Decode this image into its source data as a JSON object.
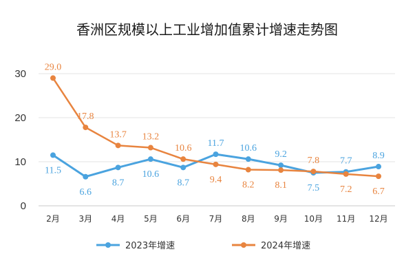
{
  "chart_data": {
    "type": "line",
    "title": "香洲区规模以上工业增加值累计增速走势图",
    "categories": [
      "2月",
      "3月",
      "4月",
      "5月",
      "6月",
      "7月",
      "8月",
      "9月",
      "10月",
      "11月",
      "12月"
    ],
    "series": [
      {
        "name": "2023年增速",
        "color": "#4aa3df",
        "values": [
          11.5,
          6.6,
          8.7,
          10.6,
          8.7,
          11.7,
          10.6,
          9.2,
          7.5,
          7.7,
          8.9
        ],
        "labels": [
          "11.5",
          "6.6",
          "8.7",
          "10.6",
          "8.7",
          "11.7",
          "10.6",
          "9.2",
          "7.5",
          "7.7",
          "8.9"
        ]
      },
      {
        "name": "2024年增速",
        "color": "#e8843f",
        "values": [
          29.0,
          17.8,
          13.7,
          13.2,
          10.6,
          9.4,
          8.2,
          8.1,
          7.8,
          7.2,
          6.7
        ],
        "labels": [
          "29.0",
          "17.8",
          "13.7",
          "13.2",
          "10.6",
          "9.4",
          "8.2",
          "8.1",
          "7.8",
          "7.2",
          "6.7"
        ]
      }
    ],
    "yticks": [
      0,
      10,
      20,
      30
    ],
    "ytick_labels": [
      "0",
      "10",
      "20",
      "30"
    ],
    "ylim": [
      0,
      30
    ],
    "xlabel": "",
    "ylabel": "",
    "grid": true,
    "legend": "bottom"
  }
}
